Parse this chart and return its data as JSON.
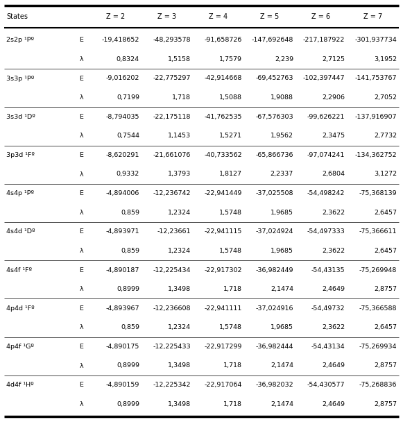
{
  "col_headers": [
    "States",
    "",
    "Z = 2",
    "Z = 3",
    "Z = 4",
    "Z = 5",
    "Z = 6",
    "Z = 7"
  ],
  "rows": [
    [
      "2s2p ¹Pº",
      "E",
      "-19,418652",
      "-48,293578",
      "-91,658726",
      "-147,692648",
      "-217,187922",
      "-301,937734"
    ],
    [
      "",
      "λ",
      "0,8324",
      "1,5158",
      "1,7579",
      "2,239",
      "2,7125",
      "3,1952"
    ],
    [
      "3s3p ¹Pº",
      "E",
      "-9,016202",
      "-22,775297",
      "-42,914668",
      "-69,452763",
      "-102,397447",
      "-141,753767"
    ],
    [
      "",
      "λ",
      "0,7199",
      "1,718",
      "1,5088",
      "1,9088",
      "2,2906",
      "2,7052"
    ],
    [
      "3s3d ¹Dº",
      "E",
      "-8,794035",
      "-22,175118",
      "-41,762535",
      "-67,576303",
      "-99,626221",
      "-137,916907"
    ],
    [
      "",
      "λ",
      "0,7544",
      "1,1453",
      "1,5271",
      "1,9562",
      "2,3475",
      "2,7732"
    ],
    [
      "3p3d ¹Fº",
      "E",
      "-8,620291",
      "-21,661076",
      "-40,733562",
      "-65,866736",
      "-97,074241",
      "-134,362752"
    ],
    [
      "",
      "λ",
      "0,9332",
      "1,3793",
      "1,8127",
      "2,2337",
      "2,6804",
      "3,1272"
    ],
    [
      "4s4p ¹Pº",
      "E",
      "-4,894006",
      "-12,236742",
      "-22,941449",
      "-37,025508",
      "-54,498242",
      "-75,368139"
    ],
    [
      "",
      "λ",
      "0,859",
      "1,2324",
      "1,5748",
      "1,9685",
      "2,3622",
      "2,6457"
    ],
    [
      "4s4d ¹Dº",
      "E",
      "-4,893971",
      "-12,23661",
      "-22,941115",
      "-37,024924",
      "-54,497333",
      "-75,366611"
    ],
    [
      "",
      "λ",
      "0,859",
      "1,2324",
      "1,5748",
      "1,9685",
      "2,3622",
      "2,6457"
    ],
    [
      "4s4f ¹Fº",
      "E",
      "-4,890187",
      "-12,225434",
      "-22,917302",
      "-36,982449",
      "-54,43135",
      "-75,269948"
    ],
    [
      "",
      "λ",
      "0,8999",
      "1,3498",
      "1,718",
      "2,1474",
      "2,4649",
      "2,8757"
    ],
    [
      "4p4d ¹Fº",
      "E",
      "-4,893967",
      "-12,236608",
      "-22,941111",
      "-37,024916",
      "-54,49732",
      "-75,366588"
    ],
    [
      "",
      "λ",
      "0,859",
      "1,2324",
      "1,5748",
      "1,9685",
      "2,3622",
      "2,6457"
    ],
    [
      "4p4f ¹Gº",
      "E",
      "-4,890175",
      "-12,225433",
      "-22,917299",
      "-36,982444",
      "-54,43134",
      "-75,269934"
    ],
    [
      "",
      "λ",
      "0,8999",
      "1,3498",
      "1,718",
      "2,1474",
      "2,4649",
      "2,8757"
    ],
    [
      "4d4f ¹Hº",
      "E",
      "-4,890159",
      "-12,225342",
      "-22,917064",
      "-36,982032",
      "-54,430577",
      "-75,268836"
    ],
    [
      "",
      "λ",
      "0,8999",
      "1,3498",
      "1,718",
      "2,1474",
      "2,4649",
      "2,8757"
    ]
  ],
  "bg_color": "#ffffff",
  "line_color": "#000000",
  "text_color": "#000000",
  "font_size": 6.8,
  "header_font_size": 7.0,
  "state_font_size": 6.8
}
